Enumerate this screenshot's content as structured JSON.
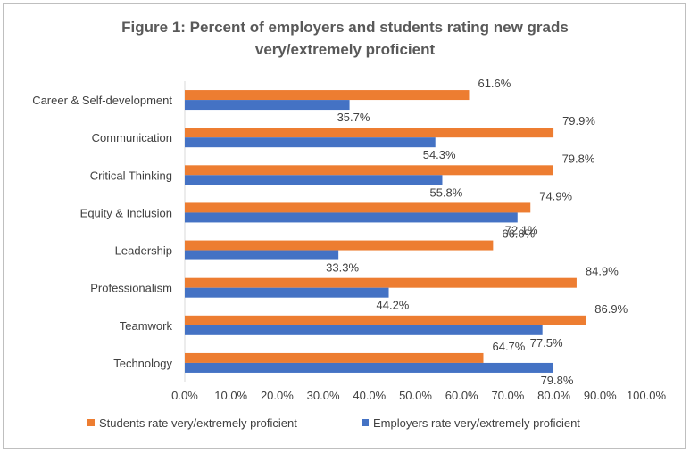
{
  "chart_data": {
    "type": "bar",
    "orientation": "horizontal",
    "title_lines": [
      "Figure 1: Percent of employers and students rating new grads",
      "very/extremely proficient"
    ],
    "categories": [
      "Career  & Self-development",
      "Communication",
      "Critical Thinking",
      "Equity & Inclusion",
      "Leadership",
      "Professionalism",
      "Teamwork",
      "Technology"
    ],
    "series": [
      {
        "name": "Students rate very/extremely proficient",
        "color": "#ED7D31",
        "values": [
          61.6,
          79.9,
          79.8,
          74.9,
          66.8,
          84.9,
          86.9,
          64.7
        ],
        "labels": [
          "61.6%",
          "79.9%",
          "79.8%",
          "74.9%",
          "66.8%",
          "84.9%",
          "86.9%",
          "64.7%"
        ]
      },
      {
        "name": "Employers rate very/extremely proficient",
        "color": "#4472C4",
        "values": [
          35.7,
          54.3,
          55.8,
          72.1,
          33.3,
          44.2,
          77.5,
          79.8
        ],
        "labels": [
          "35.7%",
          "54.3%",
          "55.8%",
          "72.1%",
          "33.3%",
          "44.2%",
          "77.5%",
          "79.8%"
        ]
      }
    ],
    "xlim": [
      0,
      100
    ],
    "ticks": [
      "0.0%",
      "10.0%",
      "20.0%",
      "30.0%",
      "40.0%",
      "50.0%",
      "60.0%",
      "70.0%",
      "80.0%",
      "90.0%",
      "100.0%"
    ],
    "grid": false,
    "legend_position": "bottom"
  }
}
